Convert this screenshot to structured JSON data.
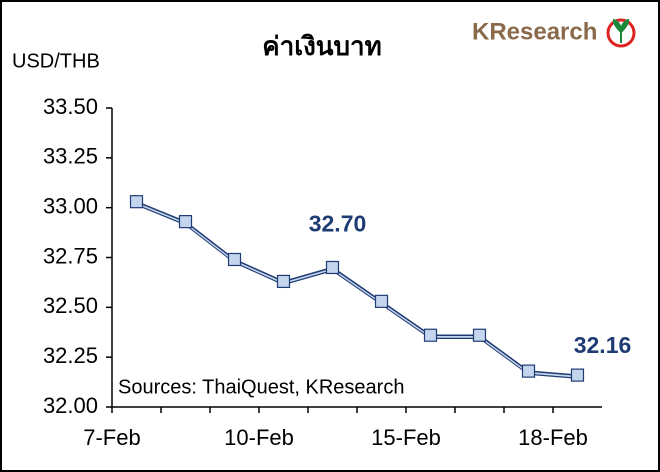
{
  "chart_data": {
    "type": "line",
    "title": "ค่าเงินบาท",
    "y_axis_label": "USD/THB",
    "logo": "KResearch",
    "source": "Sources: ThaiQuest, KResearch",
    "categories": [
      "7-Feb",
      null,
      null,
      "10-Feb",
      null,
      null,
      "15-Feb",
      null,
      null,
      "18-Feb"
    ],
    "series": [
      {
        "name": "USD/THB",
        "color": "#1f3b73",
        "marker_color": "#c5d5ee",
        "values": [
          33.03,
          32.93,
          32.74,
          32.63,
          32.7,
          32.53,
          32.36,
          32.36,
          32.18,
          32.16
        ],
        "value_labels": [
          null,
          null,
          null,
          null,
          "32.70",
          null,
          null,
          null,
          null,
          "32.16"
        ]
      }
    ],
    "ylim": [
      32.0,
      33.5
    ],
    "yticks": [
      {
        "value": 32.0,
        "label": "32.00"
      },
      {
        "value": 32.25,
        "label": "32.25"
      },
      {
        "value": 32.5,
        "label": "32.50"
      },
      {
        "value": 32.75,
        "label": "32.75"
      },
      {
        "value": 33.0,
        "label": "33.00"
      },
      {
        "value": 33.25,
        "label": "33.25"
      },
      {
        "value": 33.5,
        "label": "33.50"
      }
    ],
    "grid": false
  }
}
